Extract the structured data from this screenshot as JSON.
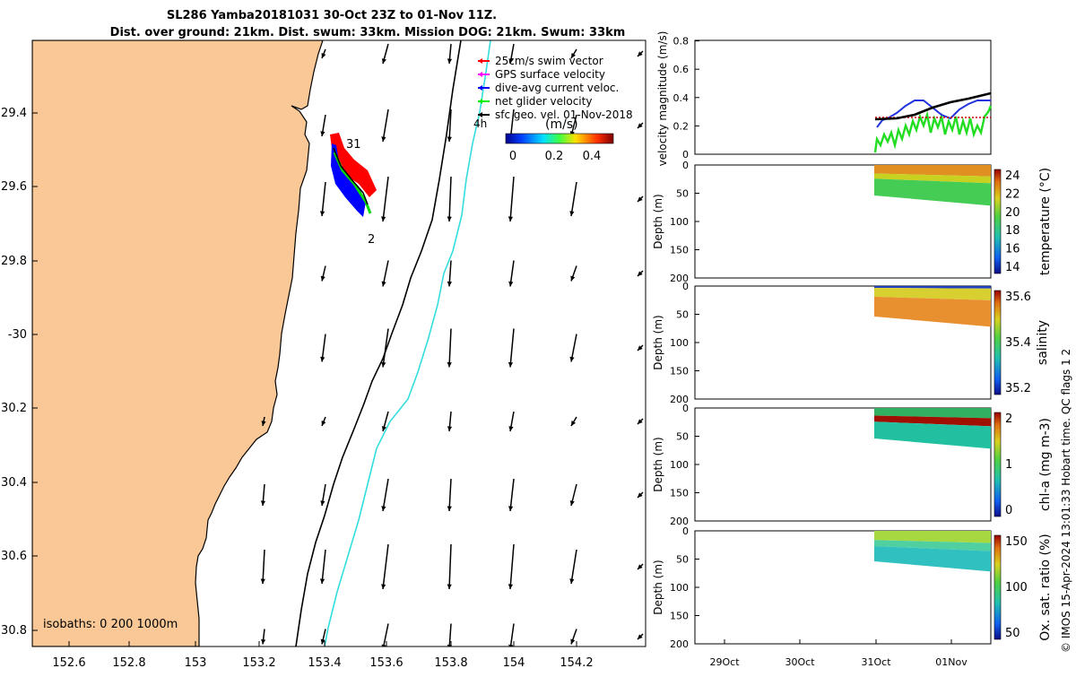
{
  "title": {
    "line1": "SL286 Yamba20181031 30-Oct 23Z to 01-Nov 11Z.",
    "line2": "Dist. over ground: 21km. Dist. swum: 33km. Mission DOG: 21km. Swum: 33km"
  },
  "map": {
    "lon_ticks": [
      "152.6",
      "152.8",
      "153",
      "153.2",
      "153.4",
      "153.6",
      "153.8",
      "154",
      "154.2"
    ],
    "lat_ticks": [
      "29.4",
      "29.6",
      "29.8",
      "-30",
      "30.2",
      "30.4",
      "30.6",
      "30.8"
    ],
    "isobaths_label": "isobaths: 0   200  1000m",
    "legend": [
      {
        "label": "25cm/s swim vector",
        "color": "#ff0000"
      },
      {
        "label": "GPS surface velocity",
        "color": "#ff00ff"
      },
      {
        "label": "dive-avg current veloc.",
        "color": "#0000ff"
      },
      {
        "label": "net glider velocity",
        "color": "#00ee00"
      },
      {
        "label": "sfc geo. vel. 01-Nov-2018",
        "color": "#000000"
      }
    ],
    "colorbar_label": "(m/s)",
    "colorbar_ticks": [
      "0",
      "0.2",
      "0.4"
    ],
    "track_labels": {
      "start": "31",
      "end": "2",
      "arrow_note": "4h"
    },
    "colors": {
      "land": "#f9c896",
      "sea": "#ffffff",
      "isobath_200": "#000000",
      "isobath_1000": "#33dddd"
    }
  },
  "velocity_panel": {
    "ylabel": "velocity magnitude (m/s)",
    "yticks": [
      "0",
      "0.2",
      "0.4",
      "0.6",
      "0.8"
    ]
  },
  "depth_panels": [
    {
      "id": "temperature",
      "label": "temperature (°C)",
      "cbar_ticks": [
        "24",
        "22",
        "20",
        "18",
        "16",
        "14"
      ]
    },
    {
      "id": "salinity",
      "label": "salinity",
      "cbar_ticks": [
        "35.6",
        "35.4",
        "35.2"
      ]
    },
    {
      "id": "chla",
      "label": "chl-a (mg m-3)",
      "cbar_ticks": [
        "2",
        "1",
        "0"
      ]
    },
    {
      "id": "oxygen",
      "label": "Ox. sat. ratio (%)",
      "cbar_ticks": [
        "150",
        "100",
        "50"
      ]
    }
  ],
  "depth_axis": {
    "ylabel": "Depth (m)",
    "yticks": [
      "0",
      "50",
      "100",
      "150",
      "200"
    ]
  },
  "time_axis": {
    "ticks": [
      "29Oct",
      "30Oct",
      "31Oct",
      "01Nov"
    ]
  },
  "credit": "© IMOS 15-Apr-2024 13:01:33 Hobart time. QC flags 1  2"
}
